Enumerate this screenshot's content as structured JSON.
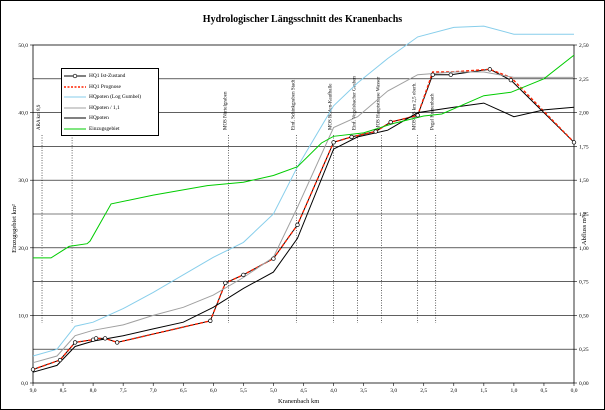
{
  "chart_data": {
    "type": "line",
    "title": "Hydrologischer Längsschnitt des Kranenbachs",
    "xlabel": "Kranenbach km",
    "ylabel_left": "Einzugsgebiet km²",
    "ylabel_right": "Abfluss m³/s",
    "xlim": [
      9.0,
      0.0
    ],
    "ylim_left": [
      0,
      50
    ],
    "ylim_right": [
      0,
      2.5
    ],
    "x_ticks": [
      "9,0",
      "8,5",
      "8,0",
      "7,5",
      "7,0",
      "6,5",
      "6,0",
      "5,5",
      "5,0",
      "4,5",
      "4,0",
      "3,5",
      "3,0",
      "2,5",
      "2,0",
      "1,5",
      "1,0",
      "0,5",
      "0,0"
    ],
    "y_left_ticks": [
      "0,0",
      "10,0",
      "20,0",
      "30,0",
      "40,0",
      "50,0"
    ],
    "y_right_ticks": [
      "0,00",
      "0,25",
      "0,50",
      "0,75",
      "1,00",
      "1,25",
      "1,50",
      "1,75",
      "2,00",
      "2,25",
      "2,50"
    ],
    "grid": true,
    "legend_position": "top-left",
    "series": [
      {
        "name": "HQ1 Ist-Zustand",
        "axis": "right",
        "color": "#000000",
        "marker": true,
        "x": [
          9.0,
          8.55,
          8.3,
          8.0,
          7.95,
          7.8,
          7.6,
          6.05,
          5.8,
          5.5,
          5.0,
          4.6,
          4.0,
          3.7,
          3.3,
          3.05,
          2.6,
          2.35,
          2.05,
          1.4,
          1.05,
          0.0
        ],
        "y": [
          0.1,
          0.17,
          0.3,
          0.32,
          0.33,
          0.33,
          0.3,
          0.46,
          0.74,
          0.8,
          0.92,
          1.17,
          1.78,
          1.82,
          1.86,
          1.93,
          1.98,
          2.28,
          2.28,
          2.32,
          2.24,
          1.78
        ]
      },
      {
        "name": "HQ1 Prognose",
        "axis": "right",
        "color": "#ff2200",
        "dashed": true,
        "x": [
          9.0,
          8.55,
          8.3,
          8.0,
          7.95,
          7.8,
          7.6,
          6.05,
          5.8,
          5.5,
          5.0,
          4.6,
          4.0,
          3.7,
          3.3,
          3.05,
          2.6,
          2.35,
          2.05,
          1.4,
          1.05,
          0.0
        ],
        "y": [
          0.1,
          0.17,
          0.3,
          0.32,
          0.33,
          0.33,
          0.3,
          0.46,
          0.74,
          0.8,
          0.92,
          1.17,
          1.78,
          1.82,
          1.86,
          1.93,
          1.98,
          2.3,
          2.3,
          2.32,
          2.26,
          1.78
        ]
      },
      {
        "name": "HQpoten (Log Gumbel)",
        "axis": "right",
        "color": "#87ceeb",
        "x": [
          9.0,
          8.6,
          8.3,
          8.0,
          7.5,
          7.0,
          6.5,
          6.0,
          5.5,
          5.0,
          4.6,
          4.0,
          3.6,
          3.1,
          2.6,
          2.0,
          1.5,
          1.0,
          0.5,
          0.0
        ],
        "y": [
          0.2,
          0.25,
          0.42,
          0.45,
          0.55,
          0.67,
          0.8,
          0.93,
          1.04,
          1.25,
          1.6,
          2.05,
          2.22,
          2.4,
          2.56,
          2.63,
          2.64,
          2.58,
          2.58,
          2.58
        ]
      },
      {
        "name": "HQpoten / 1,1",
        "axis": "right",
        "color": "#a0a0a0",
        "x": [
          9.0,
          8.6,
          8.3,
          8.0,
          7.5,
          7.0,
          6.5,
          6.0,
          5.5,
          5.0,
          4.6,
          4.0,
          3.6,
          3.1,
          2.6,
          2.0,
          1.5,
          1.0,
          0.5,
          0.0
        ],
        "y": [
          0.15,
          0.2,
          0.35,
          0.39,
          0.43,
          0.5,
          0.56,
          0.65,
          0.78,
          0.93,
          1.3,
          1.89,
          1.97,
          2.16,
          2.28,
          2.3,
          2.3,
          2.26,
          2.26,
          2.26
        ]
      },
      {
        "name": "HQpoten",
        "axis": "right",
        "color": "#000000",
        "x": [
          9.0,
          8.6,
          8.3,
          8.0,
          7.5,
          7.0,
          6.5,
          6.0,
          5.5,
          5.0,
          4.6,
          4.0,
          3.6,
          3.1,
          2.6,
          2.0,
          1.5,
          1.0,
          0.5,
          0.0
        ],
        "y": [
          0.08,
          0.13,
          0.27,
          0.31,
          0.35,
          0.4,
          0.45,
          0.56,
          0.7,
          0.82,
          1.07,
          1.73,
          1.82,
          1.87,
          2.0,
          2.04,
          2.07,
          1.97,
          2.02,
          2.04
        ]
      },
      {
        "name": "Einzugsgebiet",
        "axis": "left",
        "color": "#00cc00",
        "x": [
          9.0,
          8.7,
          8.4,
          8.1,
          8.05,
          7.7,
          7.0,
          6.1,
          5.5,
          5.0,
          4.6,
          4.2,
          4.0,
          3.5,
          3.0,
          2.5,
          2.2,
          1.5,
          1.05,
          0.5,
          0.0
        ],
        "y": [
          18.5,
          18.5,
          20.2,
          20.6,
          21.0,
          26.5,
          27.8,
          29.2,
          29.7,
          30.7,
          32.0,
          35.5,
          36.5,
          37.0,
          38.4,
          39.5,
          39.8,
          42.5,
          43.0,
          45.0,
          48.5
        ]
      }
    ],
    "annotations": [
      {
        "text": "ARA km 8,9",
        "x": 8.85
      },
      {
        "text": "MOS Goldmühle",
        "x": 8.35
      },
      {
        "text": "MOS Nürtelgraben",
        "x": 5.75
      },
      {
        "text": "Einf. Schinkgraben Stadt",
        "x": 4.62
      },
      {
        "text": "MOS Roden-Kaufhalle",
        "x": 4.0
      },
      {
        "text": "Einf. Vogelsbacher Graben",
        "x": 3.6
      },
      {
        "text": "MOS Hauptstrasse Wasser",
        "x": 3.2
      },
      {
        "text": "MOS HS km 2,5 oberh.",
        "x": 2.6
      },
      {
        "text": "Pegel Kranenbach",
        "x": 2.3
      }
    ]
  },
  "legend_entries": [
    {
      "label": "HQ1 Ist-Zustand",
      "color": "#000000",
      "style": "solid-marker"
    },
    {
      "label": "HQ1 Prognose",
      "color": "#ff2200",
      "style": "dashed"
    },
    {
      "label": "HQpoten (Log Gumbel)",
      "color": "#87ceeb",
      "style": "solid"
    },
    {
      "label": "HQpoten / 1,1",
      "color": "#a0a0a0",
      "style": "solid"
    },
    {
      "label": "HQpoten",
      "color": "#000000",
      "style": "solid"
    },
    {
      "label": "Einzugsgebiet",
      "color": "#00cc00",
      "style": "solid"
    }
  ]
}
